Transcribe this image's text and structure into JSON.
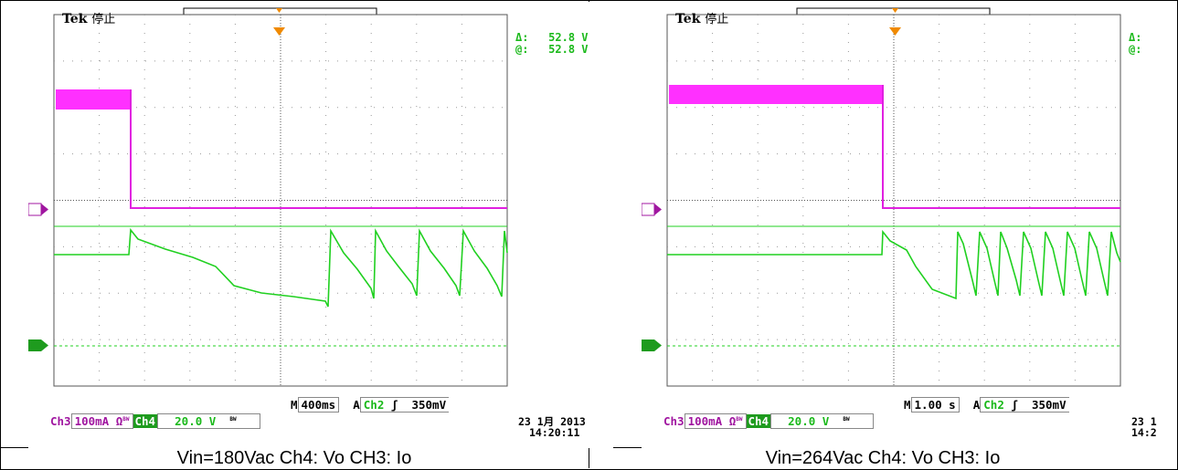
{
  "panels": [
    {
      "brand": "Tek",
      "status": "停止",
      "delta_label": "Δ:",
      "delta_value": "52.8 V",
      "at_label": "@:",
      "at_value": "52.8 V",
      "ch3_label": "Ch3",
      "ch3_scale": "100mA Ω",
      "ch3_flag": "BW",
      "ch4_label": "Ch4",
      "ch4_scale": "20.0 V",
      "ch4_flag": "BW",
      "time_prefix": "M",
      "timebase": "400ms",
      "trigger_prefix": "A",
      "trigger_src": "Ch2",
      "trigger_slope": "ʃ",
      "trigger_level": "350mV",
      "date": "23 1月 2013",
      "time": "14:20:11",
      "marker3": "3",
      "marker4": "4",
      "caption": "Vin=180Vac Ch4: Vo    CH3: Io"
    },
    {
      "brand": "Tek",
      "status": "停止",
      "delta_label": "Δ:",
      "at_label": "@:",
      "ch3_label": "Ch3",
      "ch3_scale": "100mA Ω",
      "ch3_flag": "BW",
      "ch4_label": "Ch4",
      "ch4_scale": "20.0 V",
      "ch4_flag": "BW",
      "time_prefix": "M",
      "timebase": "1.00 s",
      "trigger_prefix": "A",
      "trigger_src": "Ch2",
      "trigger_slope": "ʃ",
      "trigger_level": "350mV",
      "date": "23 1",
      "time": "14:2",
      "marker3": "3",
      "marker4": "4",
      "caption": "Vin=264Vac Ch4: Vo    CH3: Io"
    }
  ],
  "colors": {
    "ch3": "#e020e0",
    "ch4": "#20d020",
    "grid": "#777777",
    "marker4": "#1e9b1e"
  }
}
